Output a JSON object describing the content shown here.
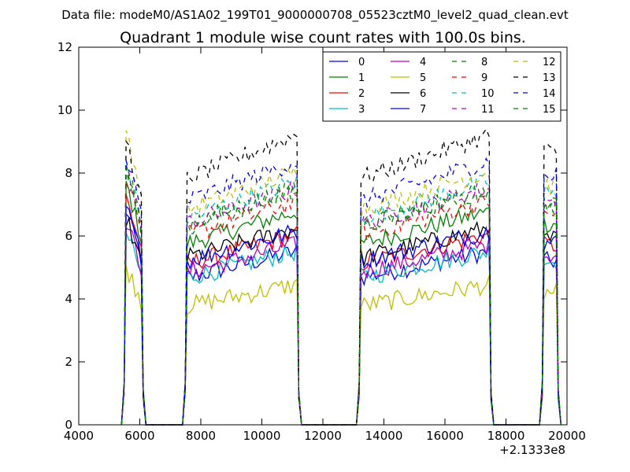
{
  "file_caption": "Data file: modeM0/AS1A02_199T01_9000000708_05523cztM0_level2_quad_clean.evt",
  "chart_data": {
    "type": "line",
    "title": "Quadrant 1 module wise count rates with 100.0s bins.",
    "xlabel": "",
    "ylabel": "",
    "x_offset_label": "+2.1333e8",
    "xlim": [
      4000,
      20000
    ],
    "ylim": [
      0,
      12
    ],
    "x_ticks": [
      "4000",
      "6000",
      "8000",
      "10000",
      "12000",
      "14000",
      "16000",
      "18000",
      "20000"
    ],
    "y_ticks": [
      "0",
      "2",
      "4",
      "6",
      "8",
      "10",
      "12"
    ],
    "legend_position": "top-right",
    "segments": [
      {
        "start": 5550,
        "end": 6050
      },
      {
        "start": 7550,
        "end": 11150
      },
      {
        "start": 13250,
        "end": 17450
      },
      {
        "start": 19250,
        "end": 19650
      }
    ],
    "series": [
      {
        "name": "0",
        "color": "#0000ff",
        "style": "solid",
        "level": 5.2,
        "early": 6.2
      },
      {
        "name": "1",
        "color": "#008000",
        "style": "solid",
        "level": 6.4,
        "early": 7.0
      },
      {
        "name": "2",
        "color": "#ff0000",
        "style": "solid",
        "level": 5.7,
        "early": 6.6
      },
      {
        "name": "3",
        "color": "#00bfbf",
        "style": "solid",
        "level": 5.2,
        "early": 5.6
      },
      {
        "name": "4",
        "color": "#bf00bf",
        "style": "solid",
        "level": 5.4,
        "early": 5.9
      },
      {
        "name": "5",
        "color": "#bfbf00",
        "style": "solid",
        "level": 4.2,
        "early": 4.6
      },
      {
        "name": "6",
        "color": "#000000",
        "style": "solid",
        "level": 5.9,
        "early": 6.0
      },
      {
        "name": "7",
        "color": "#0000ff",
        "style": "solid",
        "level": 5.8,
        "early": 6.3
      },
      {
        "name": "8",
        "color": "#008000",
        "style": "dashed",
        "level": 7.0,
        "early": 7.7
      },
      {
        "name": "9",
        "color": "#ff0000",
        "style": "dashed",
        "level": 6.7,
        "early": 7.3
      },
      {
        "name": "10",
        "color": "#00bfbf",
        "style": "dashed",
        "level": 7.3,
        "early": 7.6
      },
      {
        "name": "11",
        "color": "#bf00bf",
        "style": "dashed",
        "level": 7.1,
        "early": 7.5
      },
      {
        "name": "12",
        "color": "#bfbf00",
        "style": "dashed",
        "level": 7.6,
        "early": 8.6
      },
      {
        "name": "13",
        "color": "#000000",
        "style": "dashed",
        "level": 8.7,
        "early": 8.3
      },
      {
        "name": "14",
        "color": "#0000ff",
        "style": "dashed",
        "level": 7.9,
        "early": 7.9
      },
      {
        "name": "15",
        "color": "#008000",
        "style": "dashed",
        "level": 7.1,
        "early": 7.4
      }
    ]
  }
}
